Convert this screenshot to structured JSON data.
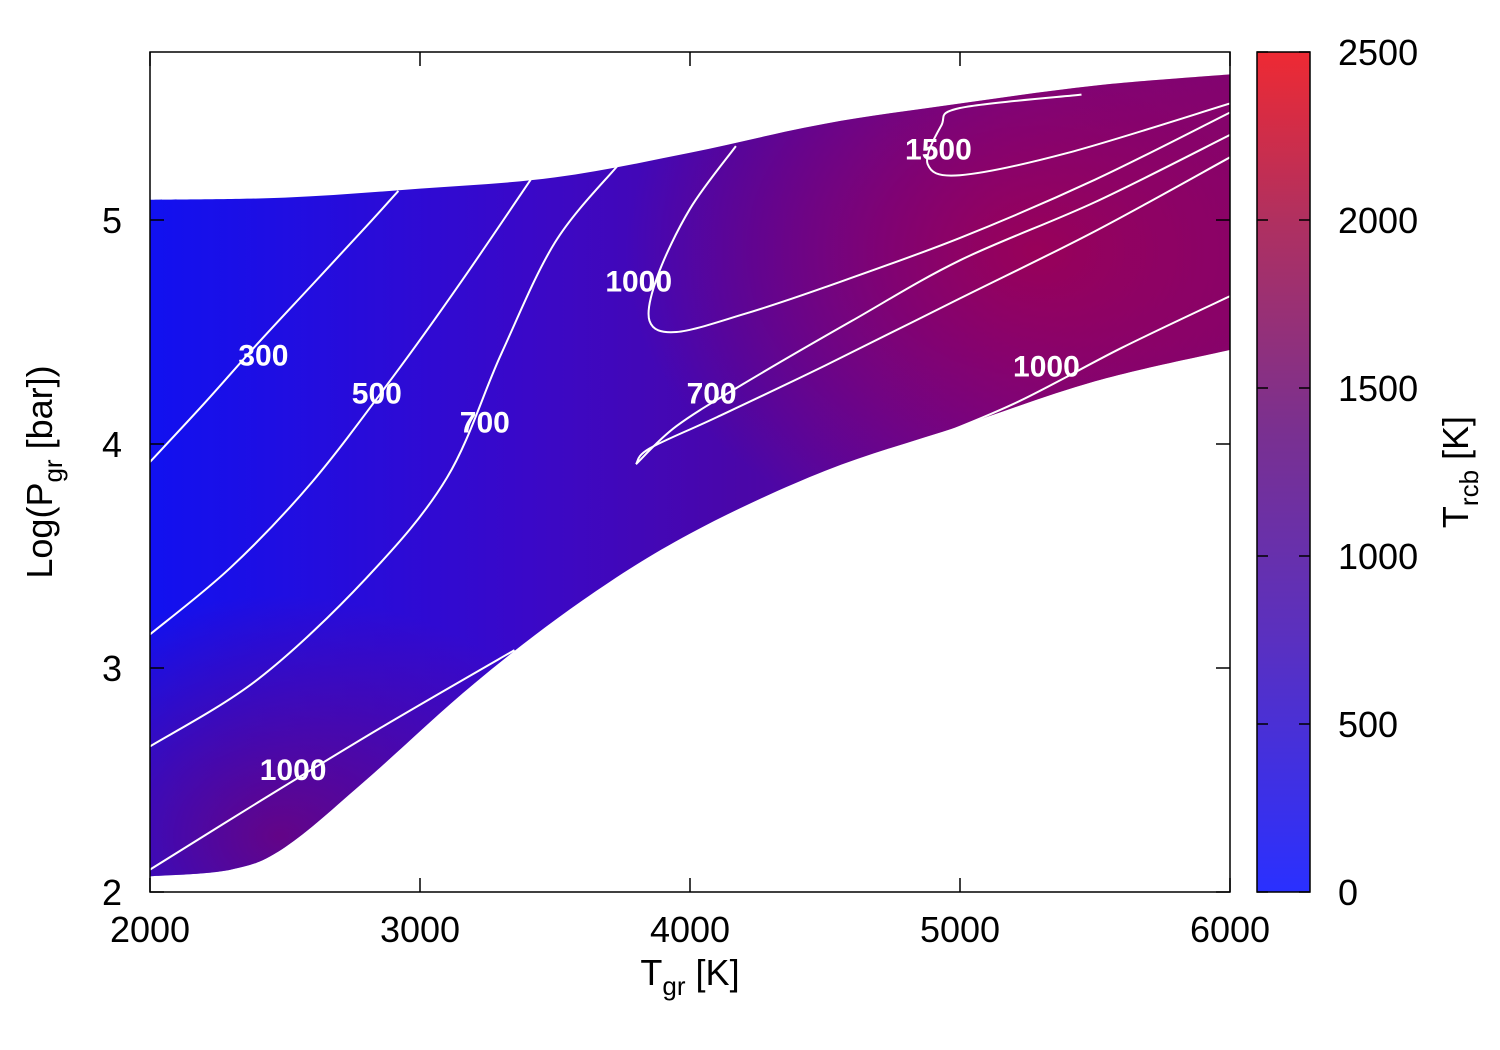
{
  "chart_data": {
    "type": "heatmap",
    "title": "",
    "xlabel": {
      "main": "T",
      "sub": "gr",
      "suffix": " [K]"
    },
    "ylabel": {
      "main": "Log(P",
      "sub": "gr",
      "suffix": " [bar])"
    },
    "colorbar_label": {
      "main": "T",
      "sub": "rcb",
      "suffix": " [K]"
    },
    "xlim": [
      2000,
      6000
    ],
    "ylim": [
      2,
      5.75
    ],
    "cbar_lim": [
      0,
      2500
    ],
    "x_ticks": [
      2000,
      3000,
      4000,
      5000,
      6000
    ],
    "y_ticks": [
      2,
      3,
      4,
      5
    ],
    "cbar_ticks": [
      0,
      500,
      1000,
      1500,
      2000,
      2500
    ],
    "colormap": {
      "low": "#1a1aff",
      "mid": "#5a0aa0",
      "high": "#ee2233"
    },
    "region": {
      "upper_boundary": [
        [
          2000,
          5.09
        ],
        [
          2500,
          5.1
        ],
        [
          3000,
          5.14
        ],
        [
          3500,
          5.19
        ],
        [
          4000,
          5.3
        ],
        [
          4500,
          5.43
        ],
        [
          5000,
          5.52
        ],
        [
          5500,
          5.6
        ],
        [
          6000,
          5.65
        ]
      ],
      "lower_boundary": [
        [
          2000,
          2.07
        ],
        [
          2300,
          2.1
        ],
        [
          2500,
          2.2
        ],
        [
          2800,
          2.5
        ],
        [
          3200,
          2.93
        ],
        [
          3600,
          3.3
        ],
        [
          4000,
          3.6
        ],
        [
          4500,
          3.88
        ],
        [
          5000,
          4.08
        ],
        [
          5500,
          4.28
        ],
        [
          6000,
          4.42
        ]
      ]
    },
    "contours": [
      {
        "level": "300",
        "points": [
          [
            2000,
            3.92
          ],
          [
            2200,
            4.18
          ],
          [
            2400,
            4.45
          ],
          [
            2600,
            4.71
          ],
          [
            2800,
            4.97
          ],
          [
            2920,
            5.13
          ]
        ]
      },
      {
        "level": "500",
        "points": [
          [
            2000,
            3.15
          ],
          [
            2300,
            3.45
          ],
          [
            2600,
            3.83
          ],
          [
            2900,
            4.3
          ],
          [
            3150,
            4.72
          ],
          [
            3410,
            5.18
          ]
        ]
      },
      {
        "level": "700",
        "points": [
          [
            2000,
            2.65
          ],
          [
            2400,
            2.95
          ],
          [
            2800,
            3.4
          ],
          [
            3100,
            3.85
          ],
          [
            3300,
            4.4
          ],
          [
            3500,
            4.9
          ],
          [
            3730,
            5.24
          ]
        ]
      },
      {
        "level": "1000",
        "points": [
          [
            2000,
            2.1
          ],
          [
            2400,
            2.4
          ],
          [
            2850,
            2.73
          ],
          [
            3350,
            3.08
          ]
        ]
      },
      {
        "level": "1000",
        "points": [
          [
            4170,
            5.33
          ],
          [
            4000,
            5.05
          ],
          [
            3880,
            4.75
          ],
          [
            3850,
            4.55
          ],
          [
            3950,
            4.5
          ],
          [
            4200,
            4.58
          ],
          [
            4500,
            4.7
          ],
          [
            5000,
            4.92
          ],
          [
            5500,
            5.18
          ],
          [
            6000,
            5.48
          ]
        ]
      },
      {
        "level": "700",
        "points": [
          [
            3800,
            3.91
          ],
          [
            3950,
            4.08
          ],
          [
            4200,
            4.27
          ],
          [
            4600,
            4.55
          ],
          [
            5000,
            4.82
          ],
          [
            5500,
            5.08
          ],
          [
            6000,
            5.38
          ]
        ]
      },
      {
        "level": "",
        "points": [
          [
            3800,
            3.91
          ],
          [
            3850,
            3.98
          ],
          [
            4100,
            4.12
          ],
          [
            4500,
            4.35
          ],
          [
            5000,
            4.65
          ],
          [
            5500,
            4.95
          ],
          [
            6000,
            5.28
          ]
        ]
      },
      {
        "level": "1000",
        "points": [
          [
            4430,
            3.8
          ],
          [
            4800,
            3.98
          ],
          [
            5200,
            4.18
          ],
          [
            5600,
            4.43
          ],
          [
            6000,
            4.66
          ]
        ]
      },
      {
        "level": "1500",
        "points": [
          [
            5450,
            5.56
          ],
          [
            5000,
            5.5
          ],
          [
            4930,
            5.42
          ],
          [
            4880,
            5.25
          ],
          [
            5000,
            5.2
          ],
          [
            5400,
            5.3
          ],
          [
            6000,
            5.52
          ]
        ]
      }
    ],
    "contour_labels": [
      {
        "text": "300",
        "x": 2420,
        "y": 4.4
      },
      {
        "text": "500",
        "x": 2840,
        "y": 4.23
      },
      {
        "text": "700",
        "x": 3240,
        "y": 4.1
      },
      {
        "text": "1000",
        "x": 2530,
        "y": 2.55
      },
      {
        "text": "1000",
        "x": 3810,
        "y": 4.73
      },
      {
        "text": "700",
        "x": 4080,
        "y": 4.23
      },
      {
        "text": "1000",
        "x": 5320,
        "y": 4.35
      },
      {
        "text": "1500",
        "x": 4920,
        "y": 5.32
      }
    ]
  }
}
